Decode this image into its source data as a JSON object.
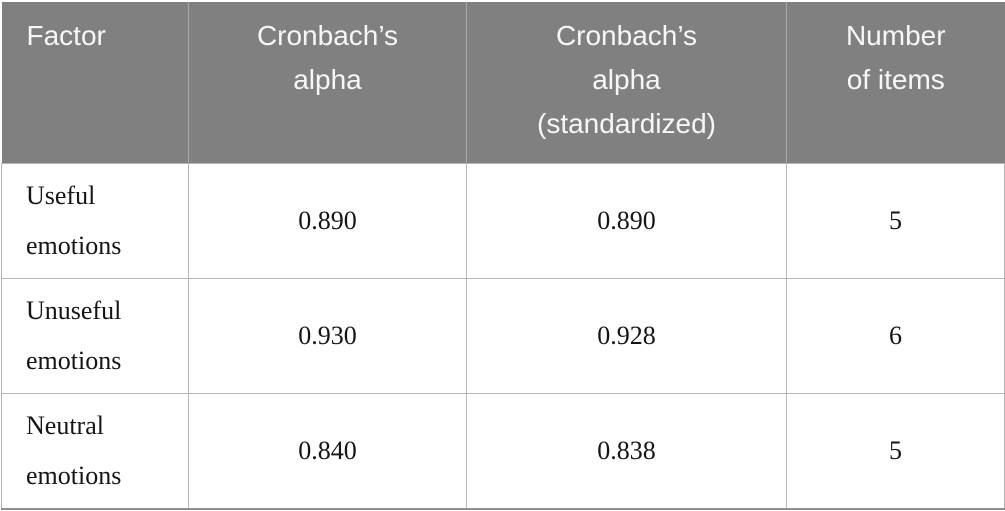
{
  "table": {
    "title_semantic": "Reliability statistics table",
    "colors": {
      "header_background": "#808080",
      "header_text": "#f7f7f7",
      "grid_line": "#b5b5b5",
      "bottom_rule": "#8f8f8f",
      "body_text": "#151515"
    },
    "headers": {
      "factor": "Factor",
      "alpha": "Cronbach’s alpha",
      "alpha_standardized": "Cronbach’s alpha (standardized)",
      "n_items": "Number of items"
    },
    "rows": [
      {
        "factor": "Useful emotions",
        "alpha": "0.890",
        "alpha_standardized": "0.890",
        "n_items": "5"
      },
      {
        "factor": "Unuseful emotions",
        "alpha": "0.930",
        "alpha_standardized": "0.928",
        "n_items": "6"
      },
      {
        "factor": "Neutral emotions",
        "alpha": "0.840",
        "alpha_standardized": "0.838",
        "n_items": "5"
      }
    ]
  }
}
